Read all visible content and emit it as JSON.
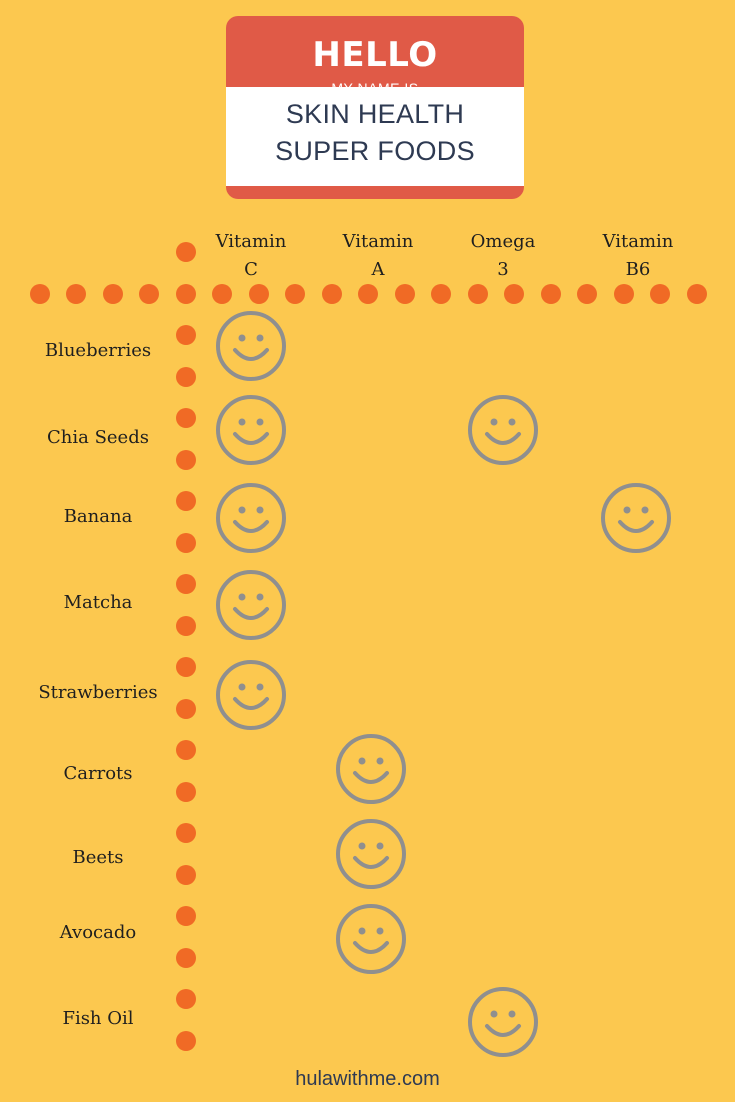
{
  "name_tag": {
    "hello": "HELLO",
    "subtitle": "MY NAME IS",
    "title_line1": "SKIN HEALTH",
    "title_line2": "SUPER FOODS"
  },
  "columns": [
    {
      "line1": "Vitamin",
      "line2": "C"
    },
    {
      "line1": "Vitamin",
      "line2": "A"
    },
    {
      "line1": "Omega",
      "line2": "3"
    },
    {
      "line1": "Vitamin",
      "line2": "B6"
    }
  ],
  "rows": [
    {
      "label": "Blueberries",
      "marks": [
        "Vitamin C"
      ]
    },
    {
      "label": "Chia Seeds",
      "marks": [
        "Vitamin C",
        "Omega 3"
      ]
    },
    {
      "label": "Banana",
      "marks": [
        "Vitamin C",
        "Vitamin B6"
      ]
    },
    {
      "label": "Matcha",
      "marks": [
        "Vitamin C"
      ]
    },
    {
      "label": "Strawberries",
      "marks": [
        "Vitamin C"
      ]
    },
    {
      "label": "Carrots",
      "marks": [
        "Vitamin A"
      ]
    },
    {
      "label": "Beets",
      "marks": [
        "Vitamin A"
      ]
    },
    {
      "label": "Avocado",
      "marks": [
        "Vitamin A"
      ]
    },
    {
      "label": "Fish Oil",
      "marks": [
        "Omega 3"
      ]
    }
  ],
  "footer": {
    "site": "hulawithme.com"
  },
  "colors": {
    "background": "#fcc84f",
    "tag_red": "#e05a47",
    "dots": "#f06a25",
    "smiley": "#8f8f8f",
    "text_dark": "#2e3a52"
  },
  "icons": {
    "mark": "smiley-icon",
    "divider": "dot-icon"
  }
}
